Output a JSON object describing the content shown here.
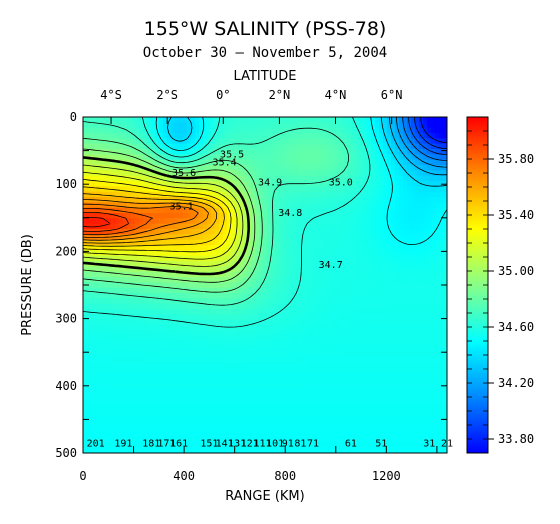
{
  "chart_data": {
    "type": "heatmap",
    "title": "155°W SALINITY (PSS-78)",
    "subtitle": "October 30 – November 5, 2004",
    "xlabel": "RANGE (KM)",
    "ylabel": "PRESSURE (DB)",
    "top_axis_label": "LATITUDE",
    "xlim": [
      0,
      1440
    ],
    "ylim": [
      500,
      0
    ],
    "x_ticks": [
      {
        "value": 0,
        "label": "0"
      },
      {
        "value": 400,
        "label": "400"
      },
      {
        "value": 800,
        "label": "800"
      },
      {
        "value": 1200,
        "label": "1200"
      }
    ],
    "y_ticks": [
      {
        "value": 0,
        "label": "0"
      },
      {
        "value": 100,
        "label": "100"
      },
      {
        "value": 200,
        "label": "200"
      },
      {
        "value": 300,
        "label": "300"
      },
      {
        "value": 400,
        "label": "400"
      },
      {
        "value": 500,
        "label": "500"
      }
    ],
    "latitude_ticks": [
      {
        "x": 111,
        "label": "4°S"
      },
      {
        "x": 333,
        "label": "2°S"
      },
      {
        "x": 555,
        "label": "0°"
      },
      {
        "x": 777,
        "label": "2°N"
      },
      {
        "x": 999,
        "label": "4°N"
      },
      {
        "x": 1221,
        "label": "6°N"
      }
    ],
    "colorbar": {
      "min": 33.7,
      "max": 36.1,
      "tick_labels": [
        "33.80",
        "34.20",
        "34.60",
        "35.00",
        "35.40",
        "35.80"
      ],
      "tick_values": [
        33.8,
        34.2,
        34.6,
        35.0,
        35.4,
        35.8
      ],
      "colors": [
        "#0000ff",
        "#0088ff",
        "#00ffff",
        "#88ff88",
        "#ffff00",
        "#ff8800",
        "#ff0000"
      ]
    },
    "contour_labels": [
      {
        "x": 590,
        "p": 60,
        "label": "35.5"
      },
      {
        "x": 400,
        "p": 88,
        "label": "35.6"
      },
      {
        "x": 560,
        "p": 72,
        "label": "35.4"
      },
      {
        "x": 740,
        "p": 102,
        "label": "34.9"
      },
      {
        "x": 1020,
        "p": 102,
        "label": "35.0"
      },
      {
        "x": 390,
        "p": 138,
        "label": "35.1"
      },
      {
        "x": 820,
        "p": 147,
        "label": "34.8"
      },
      {
        "x": 980,
        "p": 225,
        "label": "34.7"
      },
      {
        "x": 50,
        "p": 490,
        "label": "201"
      },
      {
        "x": 160,
        "p": 490,
        "label": "191"
      },
      {
        "x": 270,
        "p": 490,
        "label": "181"
      },
      {
        "x": 330,
        "p": 490,
        "label": "171"
      },
      {
        "x": 380,
        "p": 490,
        "label": "161"
      },
      {
        "x": 500,
        "p": 490,
        "label": "151"
      },
      {
        "x": 560,
        "p": 490,
        "label": "141"
      },
      {
        "x": 610,
        "p": 490,
        "label": "131"
      },
      {
        "x": 660,
        "p": 490,
        "label": "121"
      },
      {
        "x": 710,
        "p": 490,
        "label": "111"
      },
      {
        "x": 760,
        "p": 490,
        "label": "101"
      },
      {
        "x": 810,
        "p": 490,
        "label": "91"
      },
      {
        "x": 860,
        "p": 490,
        "label": "81"
      },
      {
        "x": 910,
        "p": 490,
        "label": "71"
      },
      {
        "x": 1060,
        "p": 490,
        "label": "61"
      },
      {
        "x": 1180,
        "p": 490,
        "label": "51"
      },
      {
        "x": 1370,
        "p": 490,
        "label": "31"
      },
      {
        "x": 1440,
        "p": 490,
        "label": "21"
      }
    ]
  }
}
